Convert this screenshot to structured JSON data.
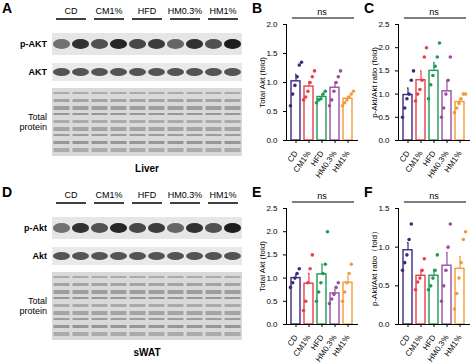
{
  "blots": [
    {
      "panel": "A",
      "groups": [
        "CD",
        "CM1%",
        "HFD",
        "HM0.3%",
        "HM1%"
      ],
      "rows": [
        "p-AKT",
        "AKT",
        "Total protein"
      ],
      "tissue": "Liver"
    },
    {
      "panel": "D",
      "groups": [
        "CD",
        "CM1%",
        "HFD",
        "HM0.3%",
        "HM1%"
      ],
      "rows": [
        "p-Akt",
        "Akt",
        "Total protein"
      ],
      "tissue": "sWAT"
    }
  ],
  "chart_data": [
    {
      "type": "bar",
      "panel": "B",
      "ylabel": "Total Akt (fold)",
      "annotation": "ns",
      "categories": [
        "CD",
        "CM1%",
        "HFD",
        "HM0.3%",
        "HM1%"
      ],
      "values": [
        1.02,
        0.93,
        0.75,
        0.91,
        0.72
      ],
      "errors": [
        0.12,
        0.08,
        0.04,
        0.09,
        0.04
      ],
      "points": [
        [
          0.6,
          0.8,
          0.95,
          1.1,
          1.3,
          1.35
        ],
        [
          0.7,
          0.75,
          0.85,
          1.0,
          1.1,
          1.2
        ],
        [
          0.65,
          0.7,
          0.72,
          0.8,
          0.85
        ],
        [
          0.6,
          0.7,
          0.85,
          1.0,
          1.1,
          1.2
        ],
        [
          0.6,
          0.65,
          0.7,
          0.75,
          0.8,
          0.85
        ]
      ],
      "colors": [
        "#3b2c7c",
        "#e8414a",
        "#1f9a55",
        "#9b4fa0",
        "#f29b38"
      ],
      "ylim": [
        0,
        2.0
      ],
      "yticks": [
        {
          "value": 0,
          "label": "0.0"
        },
        0.5,
        {
          "value": 1.0,
          "label": "1.0"
        },
        1.5,
        {
          "value": 2.0,
          "label": "2.0"
        }
      ]
    },
    {
      "type": "bar",
      "panel": "C",
      "ylabel": "p-Akt/Akt ratio (fold)",
      "annotation": "ns",
      "categories": [
        "CD",
        "CM1%",
        "HFD",
        "HM0.3%",
        "HM1%"
      ],
      "values": [
        0.98,
        1.3,
        1.5,
        1.06,
        0.83
      ],
      "errors": [
        0.15,
        0.2,
        0.18,
        0.22,
        0.07
      ],
      "points": [
        [
          0.5,
          0.7,
          0.9,
          1.0,
          1.3,
          1.5
        ],
        [
          0.85,
          1.0,
          1.1,
          1.3,
          1.8,
          2.0
        ],
        [
          0.9,
          1.2,
          1.4,
          1.6,
          1.8,
          2.1
        ],
        [
          0.5,
          0.7,
          1.0,
          1.3,
          1.8
        ],
        [
          0.6,
          0.7,
          0.8,
          0.9,
          1.0,
          1.0
        ]
      ],
      "colors": [
        "#3b2c7c",
        "#e8414a",
        "#1f9a55",
        "#9b4fa0",
        "#f29b38"
      ],
      "ylim": [
        0,
        2.5
      ],
      "yticks": [
        {
          "value": 0,
          "label": "0.0"
        },
        0.5,
        {
          "value": 1.0,
          "label": "1.0"
        },
        1.5,
        {
          "value": 2.0,
          "label": "2.0"
        },
        2.5
      ]
    },
    {
      "type": "bar",
      "panel": "E",
      "ylabel": "Total Akt (fold)",
      "annotation": "ns",
      "categories": [
        "CD",
        "CM1%",
        "HFD",
        "HM0.3%",
        "HM1%"
      ],
      "values": [
        1.0,
        0.88,
        1.08,
        0.67,
        0.9
      ],
      "errors": [
        0.07,
        0.22,
        0.22,
        0.08,
        0.14
      ],
      "points": [
        [
          0.8,
          0.9,
          1.0,
          1.1,
          1.2
        ],
        [
          0.3,
          0.5,
          0.9,
          1.2,
          1.5
        ],
        [
          0.5,
          0.7,
          0.9,
          1.1,
          1.3,
          2.0
        ],
        [
          0.45,
          0.55,
          0.65,
          0.8,
          0.9
        ],
        [
          0.5,
          0.7,
          0.9,
          1.1,
          1.3
        ]
      ],
      "colors": [
        "#3b2c7c",
        "#e8414a",
        "#1f9a55",
        "#9b4fa0",
        "#f29b38"
      ],
      "ylim": [
        0,
        2.5
      ],
      "yticks": [
        {
          "value": 0,
          "label": "0.0"
        },
        0.5,
        {
          "value": 1.0,
          "label": "1.0"
        },
        1.5,
        {
          "value": 2.0,
          "label": "2.0"
        },
        2.5
      ]
    },
    {
      "type": "bar",
      "panel": "F",
      "ylabel": "p-Akt/Akt ratio（fold）",
      "annotation": "ns",
      "categories": [
        "CD",
        "CM1%",
        "HFD",
        "HM0.3%",
        "HM1%"
      ],
      "values": [
        0.96,
        0.63,
        0.63,
        0.76,
        0.72
      ],
      "errors": [
        0.1,
        0.07,
        0.08,
        0.17,
        0.16
      ],
      "points": [
        [
          0.7,
          0.8,
          0.9,
          1.1,
          1.3
        ],
        [
          0.45,
          0.55,
          0.6,
          0.7,
          0.85
        ],
        [
          0.45,
          0.5,
          0.6,
          0.7,
          0.9
        ],
        [
          0.3,
          0.5,
          0.7,
          1.0,
          1.3
        ],
        [
          0.2,
          0.4,
          0.6,
          0.8,
          1.1,
          1.2
        ]
      ],
      "colors": [
        "#3b2c7c",
        "#e8414a",
        "#1f9a55",
        "#9b4fa0",
        "#f29b38"
      ],
      "ylim": [
        0,
        1.5
      ],
      "yticks": [
        {
          "value": 0,
          "label": "0.0"
        },
        0.5,
        {
          "value": 1.0,
          "label": "1.0"
        },
        1.5
      ]
    }
  ]
}
